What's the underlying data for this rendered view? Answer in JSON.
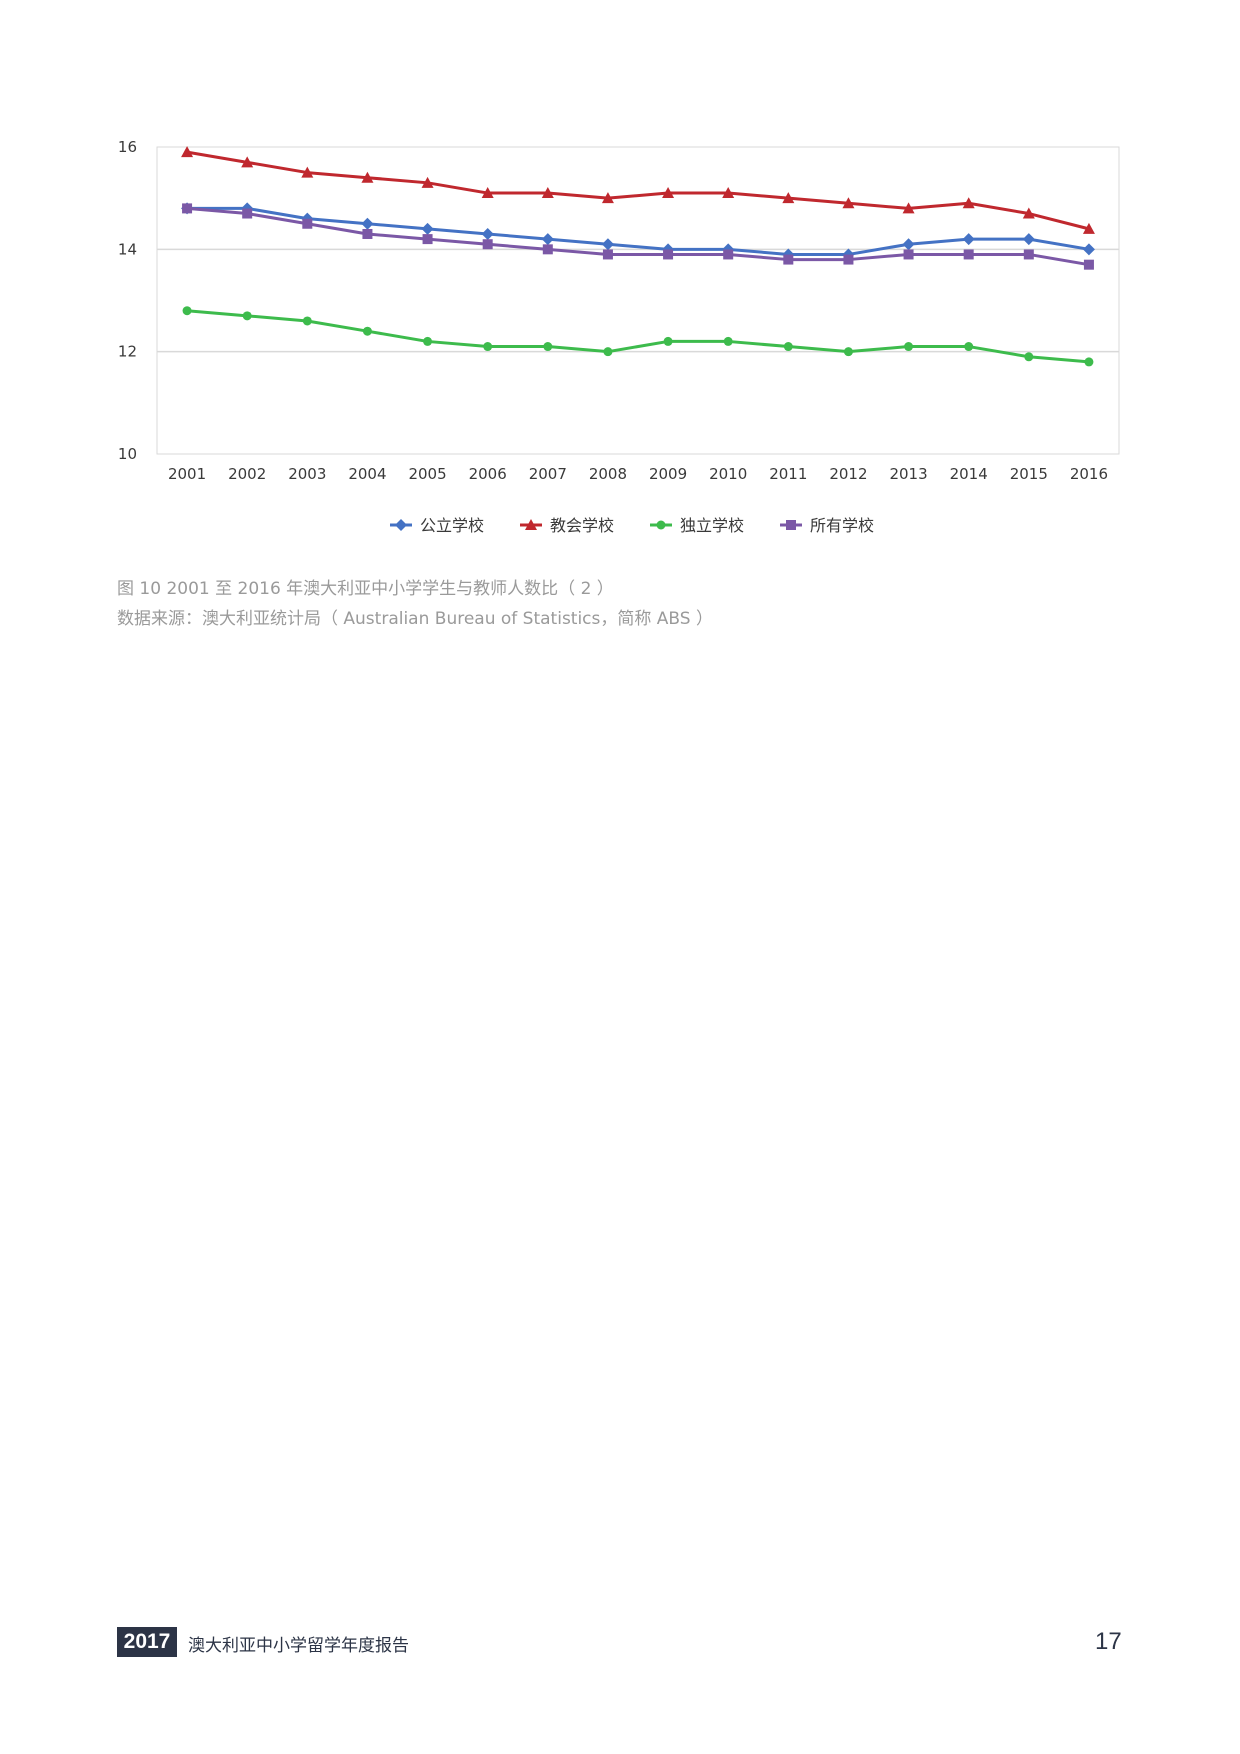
{
  "chart_data": {
    "type": "line",
    "categories": [
      "2001",
      "2002",
      "2003",
      "2004",
      "2005",
      "2006",
      "2007",
      "2008",
      "2009",
      "2010",
      "2011",
      "2012",
      "2013",
      "2014",
      "2015",
      "2016"
    ],
    "series": [
      {
        "name": "公立学校",
        "color": "#4472c4",
        "marker": "diamond",
        "values": [
          14.8,
          14.8,
          14.6,
          14.5,
          14.4,
          14.3,
          14.2,
          14.1,
          14.0,
          14.0,
          13.9,
          13.9,
          14.1,
          14.2,
          14.2,
          14.0
        ]
      },
      {
        "name": "教会学校",
        "color": "#c0282e",
        "marker": "triangle",
        "values": [
          15.9,
          15.7,
          15.5,
          15.4,
          15.3,
          15.1,
          15.1,
          15.0,
          15.1,
          15.1,
          15.0,
          14.9,
          14.8,
          14.9,
          14.7,
          14.4
        ]
      },
      {
        "name": "独立学校",
        "color": "#3dbb4c",
        "marker": "circle",
        "values": [
          12.8,
          12.7,
          12.6,
          12.4,
          12.2,
          12.1,
          12.1,
          12.0,
          12.2,
          12.2,
          12.1,
          12.0,
          12.1,
          12.1,
          11.9,
          11.8
        ]
      },
      {
        "name": "所有学校",
        "color": "#7b58a6",
        "marker": "square",
        "values": [
          14.8,
          14.7,
          14.5,
          14.3,
          14.2,
          14.1,
          14.0,
          13.9,
          13.9,
          13.9,
          13.8,
          13.8,
          13.9,
          13.9,
          13.9,
          13.7
        ]
      }
    ],
    "ylim": [
      10,
      16
    ],
    "yticks": [
      "10",
      "12",
      "14",
      "16"
    ],
    "grid": true,
    "legend_position": "bottom"
  },
  "captions": {
    "figure": "图 10 2001 至 2016 年澳大利亚中小学学生与教师人数比（ 2 ）",
    "source": "数据来源：澳大利亚统计局（ Australian Bureau of Statistics，简称 ABS ）"
  },
  "footer": {
    "year": "2017",
    "title": "澳大利亚中小学留学年度报告",
    "page_number": "17"
  }
}
